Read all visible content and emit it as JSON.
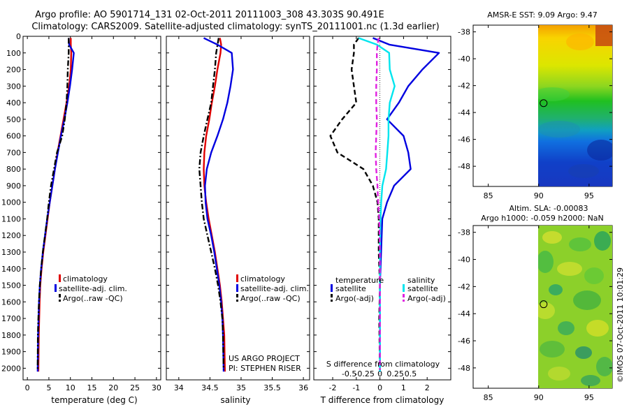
{
  "header": {
    "title_line1": "Argo profile: AO 5901714_131 02-Oct-2011 20111003_308 43.303S 90.491E",
    "title_line2": "Climatology: CARS2009. Satellite-adjusted climatology: synTS_20111001.nc (1.3d earlier)"
  },
  "colors": {
    "climatology": "#e00000",
    "satellite": "#0000e0",
    "argo": "#000000",
    "sal_satellite": "#00e5ee",
    "sal_argo": "#e020e0"
  },
  "chart_data": [
    {
      "type": "line",
      "id": "temperature",
      "xlabel": "temperature (deg C)",
      "xlim": [
        -1,
        31
      ],
      "ylim": [
        2070,
        0
      ],
      "xticks": [
        0,
        5,
        10,
        15,
        20,
        25,
        30
      ],
      "xtick_labels": [
        "0",
        "5",
        "10",
        "15",
        "20",
        "25",
        "30"
      ],
      "yticks": [
        0,
        100,
        200,
        300,
        400,
        500,
        600,
        700,
        800,
        900,
        1000,
        1100,
        1200,
        1300,
        1400,
        1500,
        1600,
        1700,
        1800,
        1900,
        2000
      ],
      "ytick_labels": [
        "0",
        "100",
        "200",
        "300",
        "400",
        "500",
        "600",
        "700",
        "800",
        "900",
        "1000",
        "1100",
        "1200",
        "1300",
        "1400",
        "1500",
        "1600",
        "1700",
        "1800",
        "1900",
        "2000"
      ],
      "legend": [
        "climatology",
        "satellite-adj. clim.",
        "Argo(..raw -QC)"
      ],
      "series": [
        {
          "name": "climatology",
          "style": "solid",
          "color": "#e00000",
          "x": [
            10.1,
            10.1,
            10.2,
            10.1,
            9.7,
            9.1,
            8.4,
            7.7,
            7.0,
            6.4,
            5.8,
            5.2,
            4.7,
            4.2,
            3.7,
            3.3,
            3.0,
            2.85,
            2.75,
            2.65,
            2.55
          ],
          "y": [
            10,
            50,
            100,
            200,
            300,
            400,
            500,
            600,
            700,
            800,
            900,
            1000,
            1100,
            1200,
            1300,
            1400,
            1500,
            1600,
            1700,
            1800,
            2020
          ]
        },
        {
          "name": "satellite-adj. clim.",
          "style": "solid",
          "color": "#0000e0",
          "x": [
            9.6,
            9.7,
            10.8,
            10.4,
            9.9,
            9.3,
            8.6,
            7.8,
            7.1,
            6.4,
            5.8,
            5.2,
            4.6,
            4.1,
            3.6,
            3.2,
            2.9,
            2.7,
            2.6,
            2.5,
            2.4
          ],
          "y": [
            10,
            50,
            100,
            200,
            300,
            400,
            500,
            600,
            700,
            800,
            900,
            1000,
            1100,
            1200,
            1300,
            1400,
            1500,
            1600,
            1700,
            1800,
            2020
          ]
        },
        {
          "name": "Argo(..raw -QC)",
          "style": "dashdot",
          "color": "#000000",
          "x": [
            9.6,
            9.6,
            9.4,
            9.3,
            9.1,
            8.7,
            8.1,
            6.9,
            6.2,
            5.5,
            5.0,
            4.6,
            4.1,
            3.6,
            3.2,
            2.9,
            2.7,
            2.55,
            2.45,
            2.4
          ],
          "y": [
            10,
            100,
            200,
            300,
            400,
            500,
            600,
            700,
            800,
            900,
            1000,
            1100,
            1200,
            1300,
            1400,
            1500,
            1600,
            1700,
            1800,
            2010
          ]
        }
      ],
      "annotations": []
    },
    {
      "type": "line",
      "id": "salinity",
      "xlabel": "salinity",
      "xlim": [
        33.8,
        36.1
      ],
      "ylim": [
        2070,
        0
      ],
      "xticks": [
        34,
        34.5,
        35,
        35.5,
        36
      ],
      "xtick_labels": [
        "34",
        "34.5",
        "35",
        "35.5",
        "36"
      ],
      "legend": [
        "climatology",
        "satellite-adj. clim.",
        "Argo(..raw -QC)"
      ],
      "series": [
        {
          "name": "climatology",
          "style": "solid",
          "color": "#e00000",
          "x": [
            34.66,
            34.68,
            34.67,
            34.62,
            34.58,
            34.53,
            34.49,
            34.44,
            34.41,
            34.4,
            34.41,
            34.44,
            34.48,
            34.53,
            34.58,
            34.62,
            34.66,
            34.69,
            34.71,
            34.73,
            34.74
          ],
          "y": [
            10,
            50,
            100,
            200,
            300,
            400,
            500,
            600,
            700,
            800,
            900,
            1000,
            1100,
            1200,
            1300,
            1400,
            1500,
            1600,
            1700,
            1800,
            2020
          ]
        },
        {
          "name": "satellite-adj. clim.",
          "style": "solid",
          "color": "#0000e0",
          "x": [
            34.4,
            34.62,
            34.85,
            34.87,
            34.83,
            34.78,
            34.71,
            34.62,
            34.52,
            34.45,
            34.42,
            34.43,
            34.46,
            34.52,
            34.57,
            34.61,
            34.65,
            34.68,
            34.7,
            34.71,
            34.72
          ],
          "y": [
            10,
            50,
            100,
            200,
            300,
            400,
            500,
            600,
            700,
            800,
            900,
            1000,
            1100,
            1200,
            1300,
            1400,
            1500,
            1600,
            1700,
            1800,
            2020
          ]
        },
        {
          "name": "Argo(..raw -QC)",
          "style": "dashdot",
          "color": "#000000",
          "x": [
            34.64,
            34.6,
            34.58,
            34.55,
            34.52,
            34.46,
            34.4,
            34.35,
            34.33,
            34.35,
            34.37,
            34.4,
            34.46,
            34.52,
            34.58,
            34.63,
            34.67,
            34.7,
            34.71,
            34.72
          ],
          "y": [
            10,
            100,
            200,
            300,
            400,
            500,
            600,
            700,
            800,
            900,
            1000,
            1100,
            1200,
            1300,
            1400,
            1500,
            1600,
            1700,
            1800,
            2010
          ]
        }
      ],
      "annotations": [
        "US ARGO PROJECT",
        "PI: STEPHEN RISER"
      ]
    },
    {
      "type": "line",
      "id": "differences",
      "xlabel": "T difference from climatology",
      "xlabel_top": "S difference from climatology",
      "xlim": [
        -2.8,
        3.0
      ],
      "ylim": [
        2070,
        0
      ],
      "xticks": [
        -2,
        -1,
        0,
        1,
        2
      ],
      "xtick_labels": [
        "-2",
        "-1",
        "0",
        "1",
        "2"
      ],
      "sal_ticks": [
        -0.5,
        -0.25,
        0,
        0.25,
        0.5
      ],
      "sal_tick_labels": [
        "-0.5",
        "-0.25",
        "0",
        "0.25",
        "0.5"
      ],
      "legend_titles": [
        "temperature",
        "salinity"
      ],
      "legend": [
        "satellite",
        "Argo(-adj)",
        "satellite",
        "Argo(-adj)"
      ],
      "series": [
        {
          "name": "temperature satellite",
          "style": "solid",
          "color": "#0000e0",
          "x": [
            -0.3,
            0.4,
            2.5,
            1.8,
            1.2,
            0.8,
            0.3,
            1.0,
            1.2,
            1.3,
            0.6,
            0.3,
            0.1,
            0.05,
            0.0,
            0.0,
            0.0,
            0.0,
            0.0,
            0.0
          ],
          "y": [
            10,
            50,
            100,
            200,
            300,
            400,
            500,
            600,
            700,
            800,
            900,
            1000,
            1100,
            1300,
            1500,
            1600,
            1700,
            1800,
            1900,
            2020
          ]
        },
        {
          "name": "temperature Argo(-adj)",
          "style": "dashed",
          "color": "#000000",
          "x": [
            -0.9,
            -1.1,
            -1.1,
            -1.2,
            -1.1,
            -1.0,
            -1.6,
            -2.1,
            -1.8,
            -0.7,
            -0.3,
            -0.1,
            -0.05,
            -0.05,
            0.0,
            -0.03,
            0.0
          ],
          "y": [
            10,
            50,
            100,
            200,
            300,
            400,
            500,
            600,
            700,
            800,
            900,
            1000,
            1100,
            1300,
            1500,
            1700,
            2010
          ]
        },
        {
          "name": "salinity satellite",
          "style": "solid",
          "color": "#00e5ee",
          "x": [
            -0.35,
            -0.05,
            0.15,
            0.16,
            0.24,
            0.16,
            0.14,
            0.14,
            0.12,
            0.1,
            0.04,
            0.02,
            0.01,
            0.0,
            0.0,
            0.0,
            0.0,
            0.0
          ],
          "y": [
            10,
            50,
            100,
            200,
            300,
            400,
            500,
            600,
            700,
            800,
            900,
            1000,
            1100,
            1300,
            1500,
            1700,
            1900,
            2020
          ]
        },
        {
          "name": "salinity Argo(-adj)",
          "style": "dashed",
          "color": "#e020e0",
          "x": [
            -0.02,
            -0.04,
            -0.05,
            -0.05,
            -0.06,
            -0.06,
            -0.05,
            -0.06,
            -0.07,
            -0.06,
            -0.04,
            -0.03,
            -0.01,
            0.0,
            0.0,
            0.0,
            0.0
          ],
          "y": [
            10,
            50,
            100,
            200,
            300,
            400,
            500,
            600,
            700,
            800,
            900,
            1000,
            1100,
            1300,
            1500,
            1700,
            2010
          ]
        }
      ],
      "annotations": []
    },
    {
      "type": "heatmap",
      "id": "sst_map",
      "title": "AMSR-E SST: 9.09 Argo: 9.47",
      "xlim": [
        83.5,
        97.3
      ],
      "ylim": [
        -49.5,
        -37.5
      ],
      "xticks": [
        85,
        90,
        95
      ],
      "xtick_labels": [
        "85",
        "90",
        "95"
      ],
      "yticks": [
        -38,
        -40,
        -42,
        -44,
        -46,
        -48
      ],
      "ytick_labels": [
        "-38",
        "-40",
        "-42",
        "-44",
        "-46",
        "-48"
      ],
      "data_lon_start": 90,
      "marker": {
        "lon": 90.491,
        "lat": -43.303
      }
    },
    {
      "type": "heatmap",
      "id": "sla_map",
      "title_line1": "Altim. SLA: -0.00083",
      "title_line2": "Argo h1000: -0.059 h2000: NaN",
      "xlim": [
        83.5,
        97.3
      ],
      "ylim": [
        -49.5,
        -37.5
      ],
      "xticks": [
        85,
        90,
        95
      ],
      "xtick_labels": [
        "85",
        "90",
        "95"
      ],
      "yticks": [
        -38,
        -40,
        -42,
        -44,
        -46,
        -48
      ],
      "ytick_labels": [
        "-38",
        "-40",
        "-42",
        "-44",
        "-46",
        "-48"
      ],
      "data_lon_start": 90,
      "marker": {
        "lon": 90.491,
        "lat": -43.303
      }
    }
  ],
  "footer": {
    "credit": "©IMOS 07-Oct-2011 10:01:29"
  }
}
